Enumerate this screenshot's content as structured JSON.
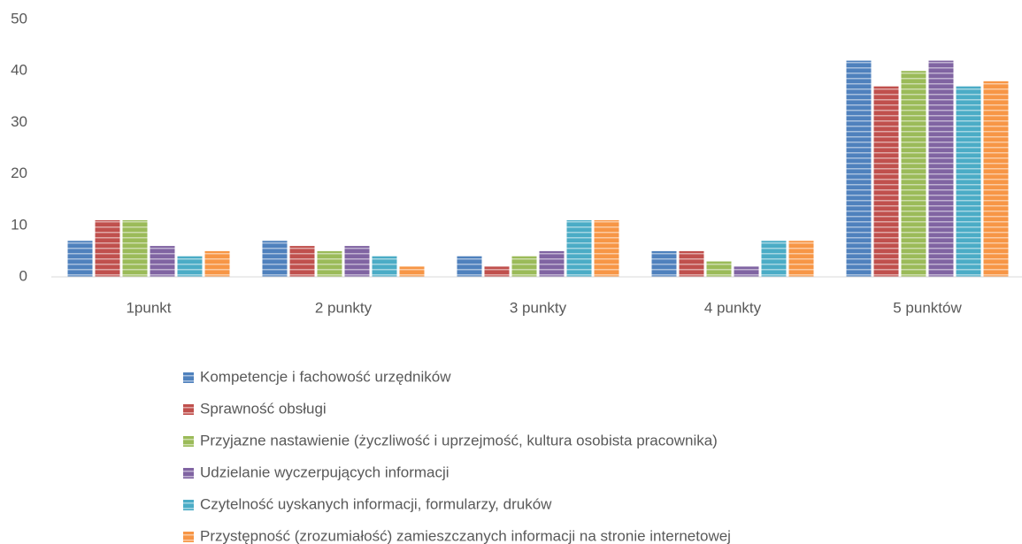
{
  "chart_data": {
    "type": "bar",
    "categories": [
      "1punkt",
      "2 punkty",
      "3 punkty",
      "4 punkty",
      "5 punktów"
    ],
    "series": [
      {
        "name": "Kompetencje i fachowość urzędników",
        "color": "#4f81bd",
        "values": [
          7,
          7,
          4,
          5,
          42
        ]
      },
      {
        "name": "Sprawność obsługi",
        "color": "#c0504d",
        "values": [
          11,
          6,
          2,
          5,
          37
        ]
      },
      {
        "name": "Przyjazne nastawienie (życzliwość i uprzejmość, kultura osobista pracownika)",
        "color": "#9bbb59",
        "values": [
          11,
          5,
          4,
          3,
          40
        ]
      },
      {
        "name": "Udzielanie wyczerpujących informacji",
        "color": "#8064a2",
        "values": [
          6,
          6,
          5,
          2,
          42
        ]
      },
      {
        "name": "Czytelność uyskanych informacji, formularzy, druków",
        "color": "#4bacc6",
        "values": [
          4,
          4,
          11,
          7,
          37
        ]
      },
      {
        "name": "Przystępność (zrozumiałość) zamieszczanych informacji na stronie internetowej",
        "color": "#f79646",
        "values": [
          5,
          2,
          11,
          7,
          38
        ]
      }
    ],
    "ylim": [
      0,
      50
    ],
    "yticks": [
      0,
      10,
      20,
      30,
      40,
      50
    ],
    "grid": false,
    "legend": "bottom"
  }
}
